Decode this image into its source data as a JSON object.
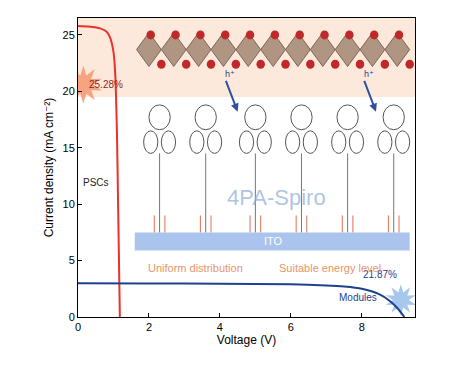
{
  "chart_data": {
    "type": "line",
    "x_label": "Voltage (V)",
    "y_label": "Current density (mA cm⁻²)",
    "xlim": [
      0,
      9.5
    ],
    "xticks": [
      0,
      2,
      4,
      6,
      8
    ],
    "ylim": [
      0,
      26.5
    ],
    "yticks": [
      0,
      5,
      10,
      15,
      20,
      25
    ],
    "grid": false,
    "series": [
      {
        "name": "PSCs",
        "color": "#e8322a",
        "x": [
          0,
          0.3,
          0.6,
          0.8,
          0.9,
          1.0,
          1.05,
          1.1,
          1.13,
          1.16,
          1.18
        ],
        "values": [
          25.8,
          25.75,
          25.6,
          25.3,
          24.8,
          23.5,
          21.5,
          16,
          10,
          4,
          0
        ]
      },
      {
        "name": "Modules",
        "color": "#1f3f8f",
        "x": [
          0,
          2,
          4,
          6,
          7,
          7.5,
          8,
          8.5,
          8.8,
          9.0,
          9.2
        ],
        "values": [
          3.0,
          2.98,
          2.95,
          2.9,
          2.8,
          2.7,
          2.5,
          2.0,
          1.4,
          0.8,
          0
        ]
      }
    ],
    "annotations": [
      "25.28%",
      "21.87%",
      "4PA-Spiro",
      "ITO",
      "Uniform distribution",
      "Suitable energy level",
      "h⁺"
    ]
  }
}
